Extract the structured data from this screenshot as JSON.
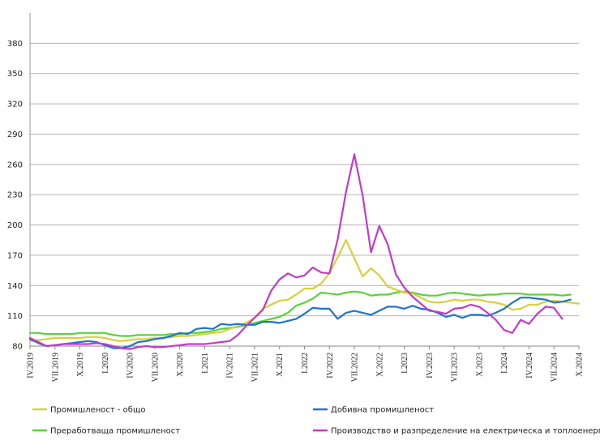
{
  "chart_data": {
    "type": "line",
    "title": "",
    "xlabel": "",
    "ylabel": "",
    "ylim": [
      80,
      410
    ],
    "yticks": [
      80,
      110,
      140,
      170,
      200,
      230,
      260,
      290,
      320,
      350,
      380
    ],
    "grid": true,
    "legend_position": "bottom",
    "x_tick_labels": [
      "IV.2019",
      "VII.2019",
      "X.2019",
      "I.2020",
      "IV.2020",
      "VII.2020",
      "X.2020",
      "I.2021",
      "IV.2021",
      "VII.2021",
      "X.2021",
      "I.2022",
      "IV.2022",
      "VII.2022",
      "X.2022",
      "I.2023",
      "IV.2023",
      "VII.2023",
      "X.2023",
      "I.2024",
      "IV.2024",
      "VII.2024",
      "X.2024"
    ],
    "series": [
      {
        "name": "Промишленост - общо",
        "color": "#d9cf3c",
        "values": [
          85,
          86,
          87,
          88,
          88,
          88,
          88,
          89,
          89,
          88,
          86,
          85,
          86,
          87,
          87,
          88,
          88,
          89,
          90,
          90,
          91,
          92,
          93,
          94,
          97,
          100,
          103,
          108,
          117,
          121,
          125,
          126,
          131,
          137,
          137,
          142,
          152,
          168,
          185,
          167,
          149,
          157,
          150,
          139,
          136,
          133,
          132,
          128,
          124,
          123,
          124,
          126,
          125,
          126,
          126,
          124,
          123,
          121,
          116,
          117,
          121,
          121,
          124,
          125,
          124,
          123,
          122
        ]
      },
      {
        "name": "Добивна промишленост",
        "color": "#2075c9",
        "values": [
          87,
          83,
          80,
          81,
          82,
          83,
          84,
          85,
          84,
          81,
          78,
          78,
          80,
          84,
          85,
          87,
          88,
          90,
          93,
          92,
          97,
          98,
          97,
          102,
          101,
          102,
          101,
          101,
          104,
          104,
          103,
          105,
          107,
          112,
          118,
          117,
          117,
          107,
          113,
          115,
          113,
          111,
          115,
          119,
          119,
          117,
          120,
          117,
          116,
          113,
          109,
          111,
          108,
          111,
          111,
          110,
          113,
          117,
          123,
          128,
          128,
          127,
          126,
          123,
          124,
          126
        ]
      },
      {
        "name": "Преработваща промишленост",
        "color": "#5ad23a",
        "values": [
          93,
          93,
          92,
          92,
          92,
          92,
          93,
          93,
          93,
          93,
          91,
          90,
          90,
          91,
          91,
          91,
          91,
          92,
          92,
          93,
          93,
          94,
          95,
          97,
          98,
          99,
          101,
          103,
          105,
          107,
          109,
          113,
          120,
          123,
          127,
          133,
          132,
          131,
          133,
          134,
          133,
          130,
          131,
          131,
          133,
          134,
          133,
          131,
          130,
          130,
          132,
          133,
          132,
          131,
          130,
          131,
          131,
          132,
          132,
          132,
          131,
          131,
          131,
          131,
          130,
          131
        ]
      },
      {
        "name": "Производство и разпределение на електрическа и топлоенергия и газ",
        "color": "#c23bc7",
        "values": [
          88,
          84,
          80,
          81,
          82,
          82,
          82,
          82,
          83,
          82,
          80,
          78,
          77,
          79,
          80,
          79,
          79,
          80,
          81,
          82,
          82,
          82,
          83,
          84,
          85,
          91,
          100,
          108,
          116,
          135,
          146,
          152,
          148,
          150,
          158,
          153,
          152,
          186,
          233,
          270,
          229,
          173,
          199,
          181,
          151,
          138,
          129,
          122,
          115,
          114,
          112,
          117,
          118,
          121,
          119,
          113,
          106,
          96,
          93,
          106,
          102,
          112,
          119,
          118,
          107
        ]
      }
    ]
  }
}
